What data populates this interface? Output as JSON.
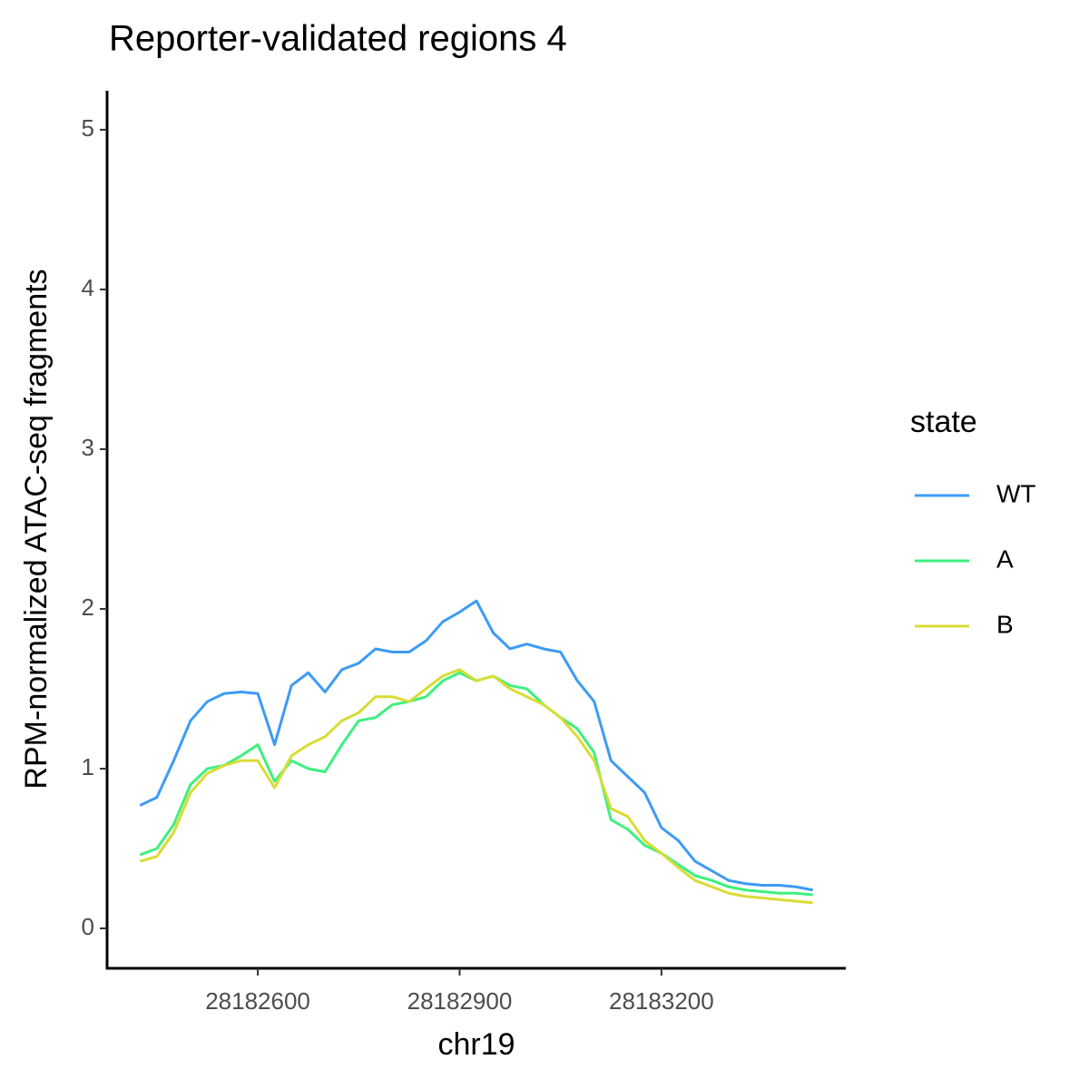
{
  "chart_data": {
    "type": "line",
    "title": "Reporter-validated regions 4",
    "x_label": "chr19",
    "y_label": "RPM-normalized ATAC-seq fragments",
    "legend_title": "state",
    "legend_position": "right",
    "x": [
      28182425,
      28182450,
      28182475,
      28182500,
      28182525,
      28182550,
      28182575,
      28182600,
      28182625,
      28182650,
      28182675,
      28182700,
      28182725,
      28182750,
      28182775,
      28182800,
      28182825,
      28182850,
      28182875,
      28182900,
      28182925,
      28182950,
      28182975,
      28183000,
      28183025,
      28183050,
      28183075,
      28183100,
      28183125,
      28183150,
      28183175,
      28183200,
      28183225,
      28183250,
      28183275,
      28183300,
      28183325,
      28183350,
      28183375,
      28183400,
      28183425
    ],
    "series": [
      {
        "name": "WT",
        "color": "#3d9bf5",
        "values": [
          0.77,
          0.82,
          1.05,
          1.3,
          1.42,
          1.47,
          1.48,
          1.47,
          1.15,
          1.52,
          1.6,
          1.48,
          1.62,
          1.66,
          1.75,
          1.73,
          1.73,
          1.8,
          1.92,
          1.98,
          2.05,
          1.85,
          1.75,
          1.78,
          1.75,
          1.73,
          1.55,
          1.42,
          1.05,
          0.95,
          0.85,
          0.63,
          0.55,
          0.42,
          0.36,
          0.3,
          0.28,
          0.27,
          0.27,
          0.26,
          0.24
        ]
      },
      {
        "name": "A",
        "color": "#3ef07f",
        "values": [
          0.46,
          0.5,
          0.65,
          0.9,
          1.0,
          1.02,
          1.08,
          1.15,
          0.92,
          1.05,
          1.0,
          0.98,
          1.15,
          1.3,
          1.32,
          1.4,
          1.42,
          1.45,
          1.55,
          1.6,
          1.55,
          1.58,
          1.52,
          1.5,
          1.4,
          1.32,
          1.25,
          1.1,
          0.68,
          0.62,
          0.52,
          0.47,
          0.4,
          0.33,
          0.3,
          0.26,
          0.24,
          0.23,
          0.22,
          0.22,
          0.21
        ]
      },
      {
        "name": "B",
        "color": "#d9dc35",
        "values": [
          0.42,
          0.45,
          0.6,
          0.85,
          0.97,
          1.02,
          1.05,
          1.05,
          0.88,
          1.08,
          1.15,
          1.2,
          1.3,
          1.35,
          1.45,
          1.45,
          1.42,
          1.5,
          1.58,
          1.62,
          1.55,
          1.58,
          1.5,
          1.45,
          1.4,
          1.32,
          1.2,
          1.05,
          0.75,
          0.7,
          0.55,
          0.47,
          0.38,
          0.3,
          0.26,
          0.22,
          0.2,
          0.19,
          0.18,
          0.17,
          0.16
        ]
      }
    ],
    "xlim": [
      28182376,
      28183474
    ],
    "xticks": [
      28182600,
      28182900,
      28183200
    ],
    "ylim": [
      -0.25,
      5.244
    ],
    "yticks": [
      0,
      1,
      2,
      3,
      4,
      5
    ],
    "grid": false
  }
}
